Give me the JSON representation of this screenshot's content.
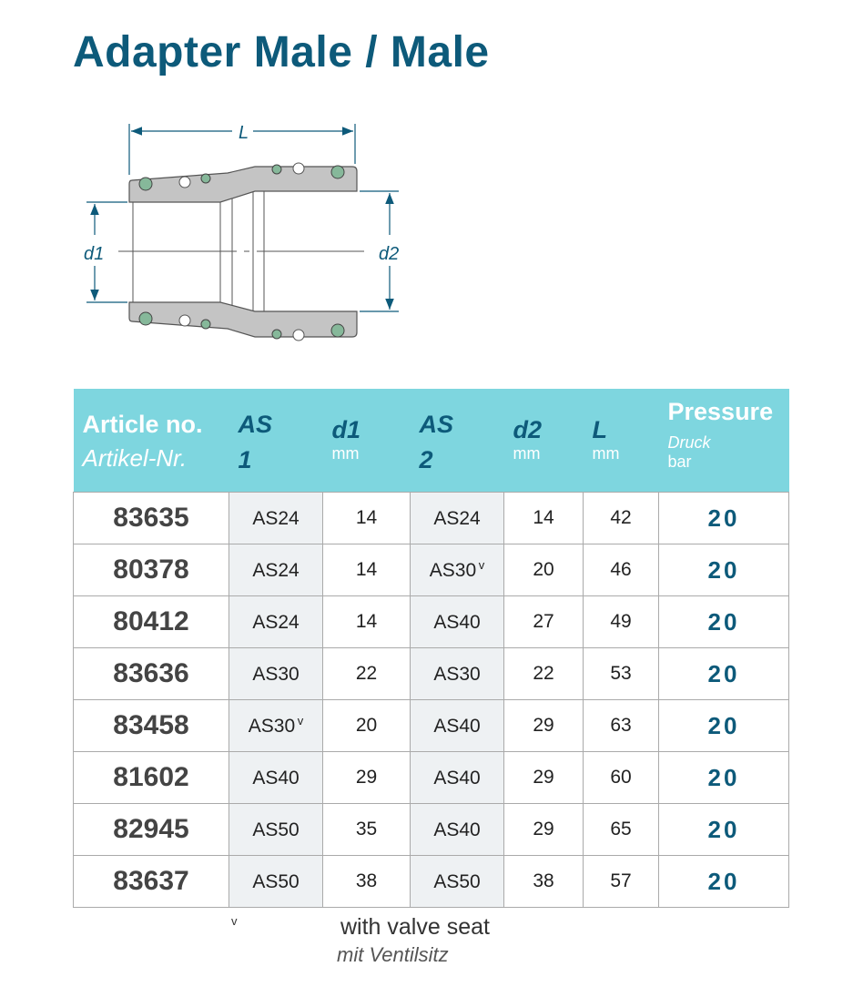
{
  "title": "Adapter Male / Male",
  "drawing": {
    "label_L": "L",
    "label_d1": "d1",
    "label_d2": "d2",
    "colors": {
      "body": "#c4c4c4",
      "oring": "#86b89a",
      "dimension": "#0d5a7a"
    }
  },
  "table": {
    "headers": {
      "article": "Article no.",
      "article_de": "Artikel-Nr.",
      "as1_a": "AS",
      "as1_b": "1",
      "d1": "d1",
      "d1_unit": "mm",
      "as2_a": "AS",
      "as2_b": "2",
      "d2": "d2",
      "d2_unit": "mm",
      "L": "L",
      "L_unit": "mm",
      "pressure": "Pressure",
      "pressure_de": "Druck",
      "pressure_unit": "bar"
    },
    "rows": [
      {
        "article": "83635",
        "as1": "AS24",
        "as1_v": "",
        "d1": "14",
        "as2": "AS24",
        "as2_v": "",
        "d2": "14",
        "L": "42",
        "pressure": "20"
      },
      {
        "article": "80378",
        "as1": "AS24",
        "as1_v": "",
        "d1": "14",
        "as2": "AS30",
        "as2_v": "V",
        "d2": "20",
        "L": "46",
        "pressure": "20"
      },
      {
        "article": "80412",
        "as1": "AS24",
        "as1_v": "",
        "d1": "14",
        "as2": "AS40",
        "as2_v": "",
        "d2": "27",
        "L": "49",
        "pressure": "20"
      },
      {
        "article": "83636",
        "as1": "AS30",
        "as1_v": "",
        "d1": "22",
        "as2": "AS30",
        "as2_v": "",
        "d2": "22",
        "L": "53",
        "pressure": "20"
      },
      {
        "article": "83458",
        "as1": "AS30",
        "as1_v": "V",
        "d1": "20",
        "as2": "AS40",
        "as2_v": "",
        "d2": "29",
        "L": "63",
        "pressure": "20"
      },
      {
        "article": "81602",
        "as1": "AS40",
        "as1_v": "",
        "d1": "29",
        "as2": "AS40",
        "as2_v": "",
        "d2": "29",
        "L": "60",
        "pressure": "20"
      },
      {
        "article": "82945",
        "as1": "AS50",
        "as1_v": "",
        "d1": "35",
        "as2": "AS40",
        "as2_v": "",
        "d2": "29",
        "L": "65",
        "pressure": "20"
      },
      {
        "article": "83637",
        "as1": "AS50",
        "as1_v": "",
        "d1": "38",
        "as2": "AS50",
        "as2_v": "",
        "d2": "38",
        "L": "57",
        "pressure": "20"
      }
    ]
  },
  "footnote": {
    "mark": "V",
    "text_en": "with valve seat",
    "text_de": "mit Ventilsitz"
  }
}
